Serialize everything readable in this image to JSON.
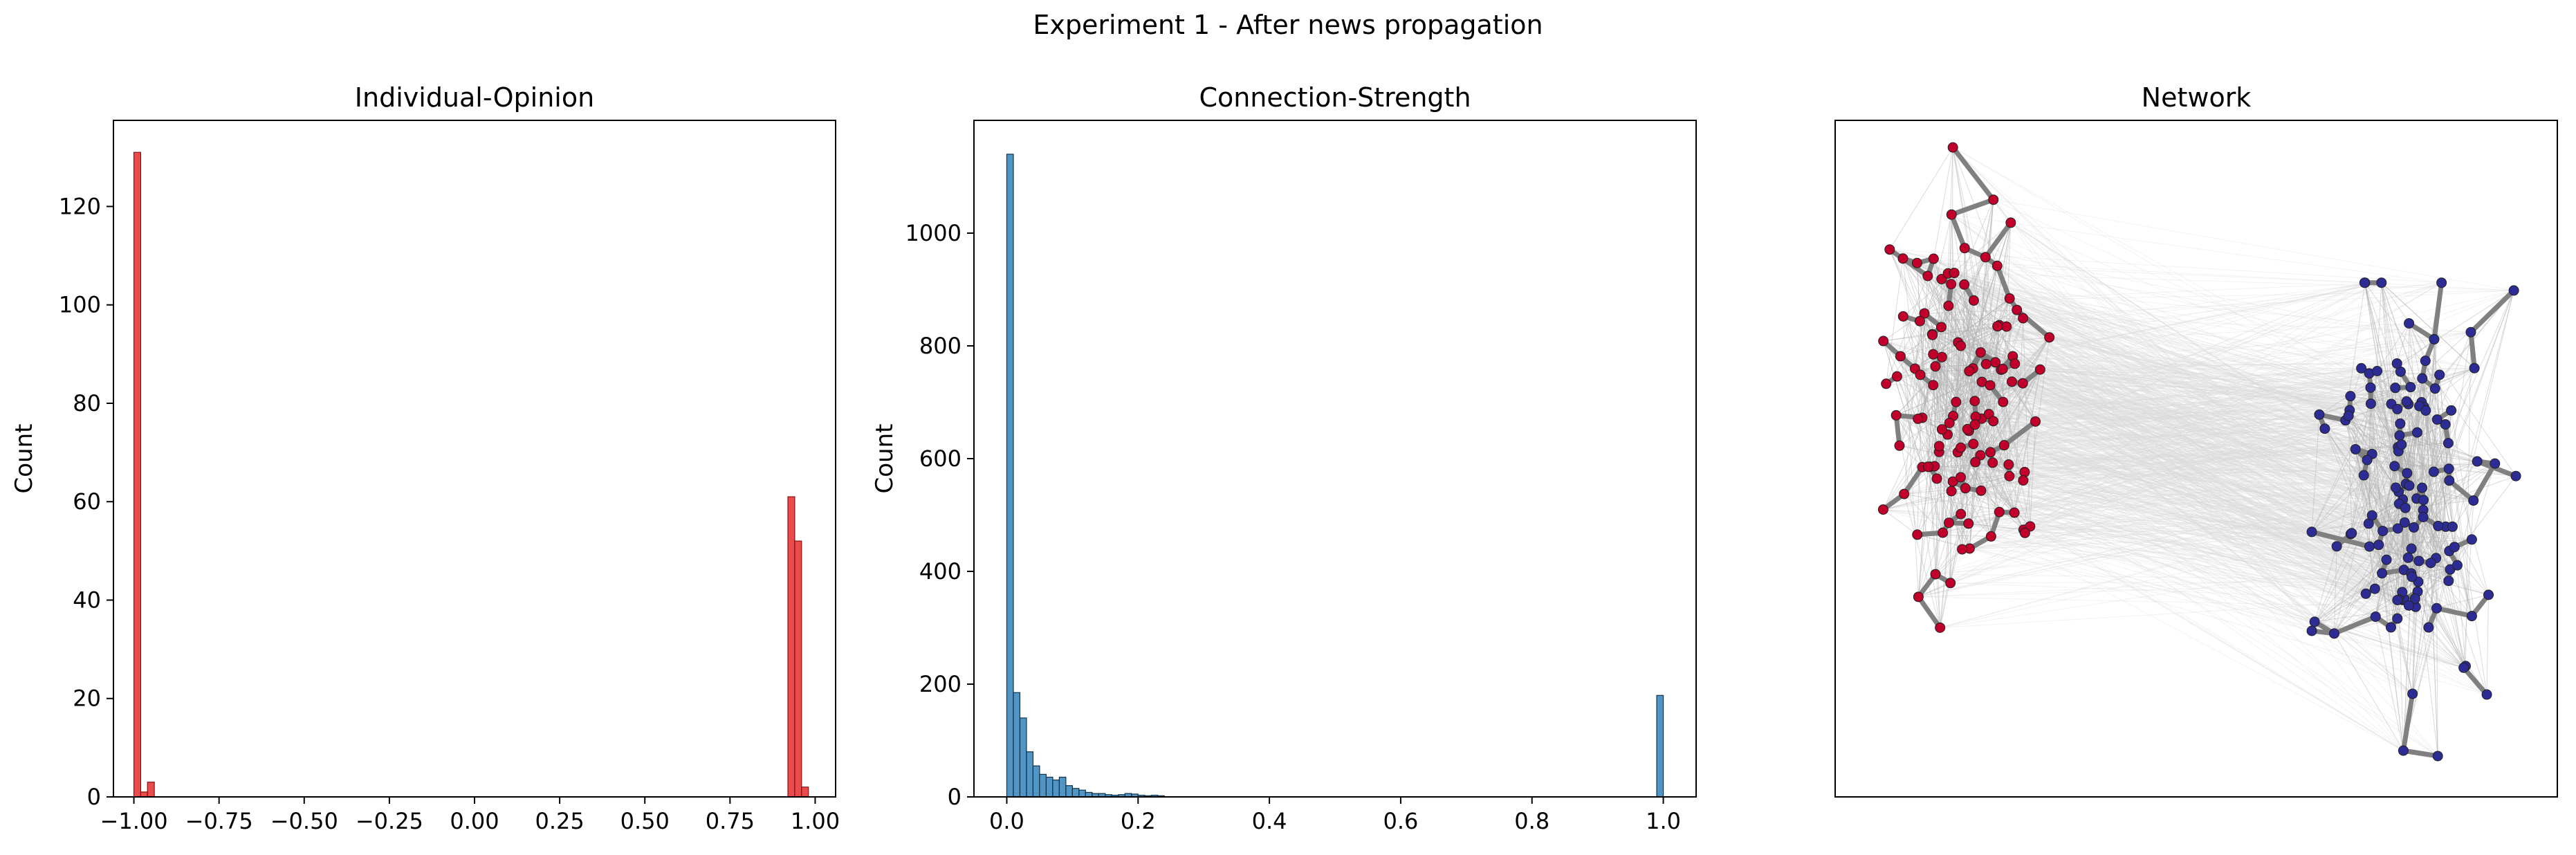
{
  "figure": {
    "title": "Experiment 1 - After news propagation"
  },
  "chart_data": [
    {
      "type": "bar",
      "title": "Individual-Opinion",
      "xlabel": "",
      "ylabel": "Count",
      "xlim": [
        -1.06,
        1.06
      ],
      "ylim": [
        0,
        137.5
      ],
      "xticks": [
        -1.0,
        -0.75,
        -0.5,
        -0.25,
        0.0,
        0.25,
        0.5,
        0.75,
        1.0
      ],
      "xtick_labels": [
        "−1.00",
        "−0.75",
        "−0.50",
        "−0.25",
        "0.00",
        "0.25",
        "0.50",
        "0.75",
        "1.00"
      ],
      "yticks": [
        0,
        20,
        40,
        60,
        80,
        100,
        120
      ],
      "ytick_labels": [
        "0",
        "20",
        "40",
        "60",
        "80",
        "100",
        "120"
      ],
      "bin_edges": [
        -1.0,
        -0.98,
        -0.96,
        0.92,
        0.94,
        0.96,
        0.98
      ],
      "values": [
        131,
        1,
        3,
        61,
        52,
        2
      ],
      "color": "#e41a1c",
      "edge_color": "#8b1010",
      "grid": false
    },
    {
      "type": "bar",
      "title": "Connection-Strength",
      "xlabel": "",
      "ylabel": "Count",
      "xlim": [
        -0.05,
        1.05
      ],
      "ylim": [
        0,
        1200
      ],
      "xticks": [
        0.0,
        0.2,
        0.4,
        0.6,
        0.8,
        1.0
      ],
      "xtick_labels": [
        "0.0",
        "0.2",
        "0.4",
        "0.6",
        "0.8",
        "1.0"
      ],
      "yticks": [
        0,
        200,
        400,
        600,
        800,
        1000
      ],
      "ytick_labels": [
        "0",
        "200",
        "400",
        "600",
        "800",
        "1000"
      ],
      "bin_width": 0.01,
      "bin_starts": [
        0.0,
        0.01,
        0.02,
        0.03,
        0.04,
        0.05,
        0.06,
        0.07,
        0.08,
        0.09,
        0.1,
        0.11,
        0.12,
        0.13,
        0.14,
        0.15,
        0.16,
        0.17,
        0.18,
        0.19,
        0.2,
        0.21,
        0.22,
        0.23,
        0.99
      ],
      "values": [
        1140,
        185,
        140,
        80,
        55,
        40,
        35,
        30,
        35,
        20,
        15,
        12,
        8,
        6,
        6,
        4,
        3,
        4,
        6,
        5,
        3,
        2,
        3,
        2,
        180
      ],
      "color": "#1f77b4",
      "edge_color": "#10324a",
      "grid": false
    },
    {
      "type": "network",
      "title": "Network",
      "groups": [
        {
          "name": "",
          "color": "#c0002a",
          "nodes": 120
        },
        {
          "name": "",
          "color": "#2c2c94",
          "nodes": 130
        }
      ],
      "strong_edge_color": "#808080",
      "weak_edge_color": "#d9d9d9",
      "grid": false
    }
  ]
}
